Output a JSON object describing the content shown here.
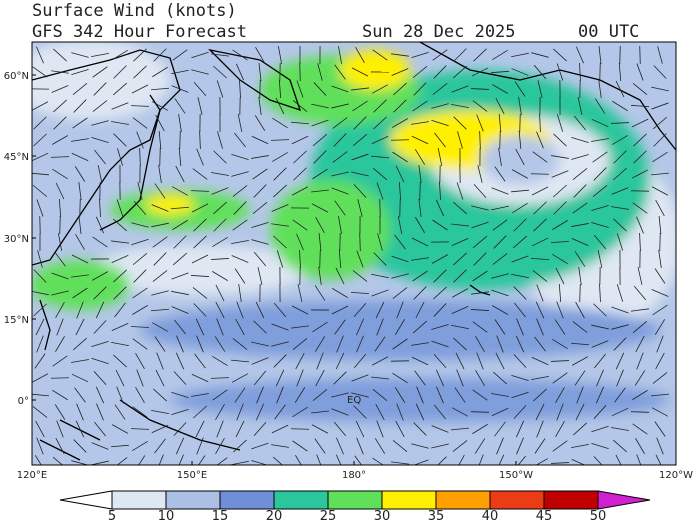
{
  "header": {
    "title": "Surface Wind (knots)",
    "subtitle": "GFS 342 Hour Forecast",
    "date": "Sun 28 Dec 2025",
    "time": "00 UTC"
  },
  "map": {
    "lat_labels": [
      "60°N",
      "45°N",
      "30°N",
      "15°N",
      "0°"
    ],
    "lon_labels": [
      "120°E",
      "150°E",
      "180°",
      "150°W",
      "120°W"
    ],
    "equator_label": "EQ"
  },
  "colorbar": {
    "levels": [
      5,
      10,
      15,
      20,
      25,
      30,
      35,
      40,
      45,
      50
    ],
    "colors": [
      "#ffffff",
      "#dfe7f3",
      "#abc0e4",
      "#6f90d8",
      "#2cc69c",
      "#60e05a",
      "#fff000",
      "#ffa000",
      "#ec3c16",
      "#c00000",
      "#d020d0"
    ]
  }
}
